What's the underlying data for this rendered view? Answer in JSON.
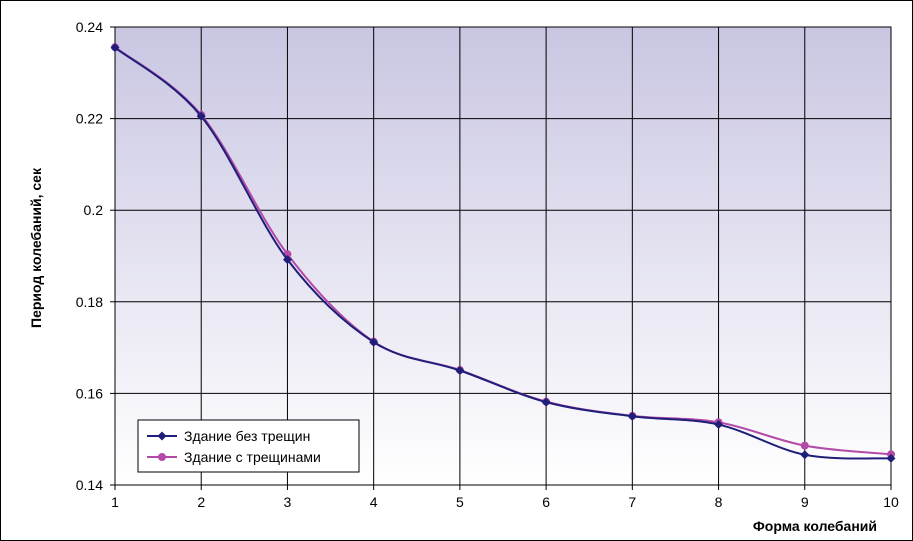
{
  "chart_data": {
    "type": "line",
    "xlabel": "Форма колебаний",
    "ylabel": "Период колебаний, сек",
    "x": [
      1,
      2,
      3,
      4,
      5,
      6,
      7,
      8,
      9,
      10
    ],
    "xlim": [
      1,
      10
    ],
    "ylim": [
      0.14,
      0.24
    ],
    "y_ticks": [
      "0.14",
      "0.16",
      "0.18",
      "0.2",
      "0.22",
      "0.24"
    ],
    "x_ticks": [
      "1",
      "2",
      "3",
      "4",
      "5",
      "6",
      "7",
      "8",
      "9",
      "10"
    ],
    "grid": true,
    "legend_position": "bottom-left",
    "series": [
      {
        "name": "Здание без трещин",
        "values": [
          0.2355,
          0.2205,
          0.1892,
          0.1712,
          0.165,
          0.1581,
          0.155,
          0.1532,
          0.1466,
          0.1458
        ],
        "color": "#1f1f7a",
        "marker": "diamond"
      },
      {
        "name": "Здание с трещинами",
        "values": [
          0.2356,
          0.2208,
          0.1904,
          0.1713,
          0.1651,
          0.1582,
          0.1551,
          0.1537,
          0.1486,
          0.1467
        ],
        "color": "#b44aa8",
        "marker": "circle"
      }
    ],
    "plot_background": {
      "top": "#c9c6e2",
      "bottom": "#ffffff"
    }
  }
}
